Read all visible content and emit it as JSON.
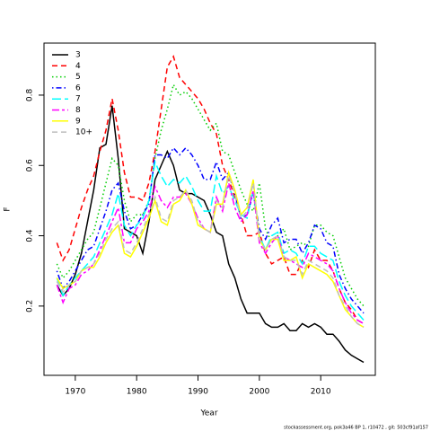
{
  "chart_data": {
    "type": "line",
    "xlabel": "Year",
    "ylabel": "F",
    "caption": "stockassessment.org, pok3a46 BP 1, r10472 , git: 503cf91af157",
    "x": [
      1967,
      1968,
      1969,
      1970,
      1971,
      1972,
      1973,
      1974,
      1975,
      1976,
      1977,
      1978,
      1979,
      1980,
      1981,
      1982,
      1983,
      1984,
      1985,
      1986,
      1987,
      1988,
      1989,
      1990,
      1991,
      1992,
      1993,
      1994,
      1995,
      1996,
      1997,
      1998,
      1999,
      2000,
      2001,
      2002,
      2003,
      2004,
      2005,
      2006,
      2007,
      2008,
      2009,
      2010,
      2011,
      2012,
      2013,
      2014,
      2015,
      2016,
      2017
    ],
    "xlim": [
      1964.9,
      2018.9
    ],
    "xticks": [
      1970,
      1980,
      1990,
      2000,
      2010
    ],
    "ylim": [
      0.003,
      0.948
    ],
    "yticks": [
      0.2,
      0.4,
      0.6,
      0.8
    ],
    "legend": "top-left",
    "series": [
      {
        "name": "3",
        "color": "#000000",
        "dash": "",
        "values": [
          0.26,
          0.23,
          0.25,
          0.29,
          0.35,
          0.44,
          0.53,
          0.65,
          0.66,
          0.77,
          0.62,
          0.42,
          0.41,
          0.4,
          0.35,
          0.44,
          0.56,
          0.6,
          0.64,
          0.6,
          0.53,
          0.52,
          0.52,
          0.51,
          0.5,
          0.46,
          0.41,
          0.4,
          0.32,
          0.28,
          0.22,
          0.18,
          0.18,
          0.18,
          0.15,
          0.14,
          0.14,
          0.15,
          0.13,
          0.13,
          0.15,
          0.14,
          0.15,
          0.14,
          0.12,
          0.12,
          0.1,
          0.075,
          0.06,
          0.05,
          0.04
        ]
      },
      {
        "name": "4",
        "color": "#ff0000",
        "dash": "6 4",
        "values": [
          0.38,
          0.33,
          0.36,
          0.42,
          0.48,
          0.53,
          0.57,
          0.64,
          0.7,
          0.79,
          0.7,
          0.58,
          0.51,
          0.51,
          0.5,
          0.55,
          0.64,
          0.76,
          0.88,
          0.91,
          0.85,
          0.83,
          0.81,
          0.79,
          0.76,
          0.72,
          0.69,
          0.6,
          0.56,
          0.51,
          0.46,
          0.4,
          0.4,
          0.41,
          0.35,
          0.32,
          0.33,
          0.34,
          0.29,
          0.29,
          0.33,
          0.31,
          0.36,
          0.33,
          0.33,
          0.3,
          0.25,
          0.21,
          0.19,
          0.16,
          0.15
        ]
      },
      {
        "name": "5",
        "color": "#00cd00",
        "dash": "1.5 3",
        "values": [
          0.32,
          0.28,
          0.3,
          0.33,
          0.36,
          0.39,
          0.41,
          0.48,
          0.55,
          0.62,
          0.6,
          0.5,
          0.44,
          0.46,
          0.46,
          0.5,
          0.62,
          0.7,
          0.76,
          0.83,
          0.8,
          0.81,
          0.79,
          0.76,
          0.73,
          0.7,
          0.72,
          0.64,
          0.63,
          0.58,
          0.53,
          0.49,
          0.47,
          0.55,
          0.42,
          0.38,
          0.4,
          0.42,
          0.36,
          0.37,
          0.38,
          0.37,
          0.43,
          0.43,
          0.41,
          0.4,
          0.34,
          0.28,
          0.25,
          0.22,
          0.2
        ]
      },
      {
        "name": "6",
        "color": "#0000ff",
        "dash": "1.5 3 6 3",
        "values": [
          0.3,
          0.25,
          0.27,
          0.3,
          0.33,
          0.36,
          0.37,
          0.42,
          0.47,
          0.53,
          0.55,
          0.47,
          0.42,
          0.43,
          0.46,
          0.49,
          0.63,
          0.63,
          0.62,
          0.65,
          0.63,
          0.65,
          0.63,
          0.6,
          0.56,
          0.56,
          0.61,
          0.56,
          0.58,
          0.52,
          0.45,
          0.46,
          0.52,
          0.42,
          0.39,
          0.43,
          0.45,
          0.38,
          0.39,
          0.39,
          0.35,
          0.38,
          0.43,
          0.42,
          0.38,
          0.37,
          0.29,
          0.25,
          0.22,
          0.2,
          0.18
        ]
      },
      {
        "name": "7",
        "color": "#00ffff",
        "dash": "10 4",
        "values": [
          0.28,
          0.23,
          0.26,
          0.28,
          0.3,
          0.32,
          0.34,
          0.38,
          0.42,
          0.46,
          0.52,
          0.43,
          0.4,
          0.43,
          0.45,
          0.5,
          0.61,
          0.57,
          0.54,
          0.56,
          0.55,
          0.57,
          0.54,
          0.5,
          0.47,
          0.47,
          0.57,
          0.52,
          0.54,
          0.5,
          0.46,
          0.45,
          0.53,
          0.4,
          0.36,
          0.4,
          0.41,
          0.35,
          0.36,
          0.35,
          0.32,
          0.37,
          0.37,
          0.35,
          0.34,
          0.33,
          0.27,
          0.23,
          0.2,
          0.18,
          0.16
        ]
      },
      {
        "name": "8",
        "color": "#ff00ff",
        "dash": "8 3 3 3",
        "values": [
          0.26,
          0.21,
          0.25,
          0.26,
          0.29,
          0.3,
          0.32,
          0.36,
          0.4,
          0.44,
          0.48,
          0.38,
          0.38,
          0.42,
          0.44,
          0.47,
          0.54,
          0.5,
          0.48,
          0.51,
          0.51,
          0.52,
          0.49,
          0.45,
          0.42,
          0.41,
          0.51,
          0.47,
          0.55,
          0.48,
          0.44,
          0.46,
          0.53,
          0.38,
          0.35,
          0.38,
          0.4,
          0.34,
          0.33,
          0.32,
          0.31,
          0.35,
          0.34,
          0.33,
          0.32,
          0.3,
          0.25,
          0.21,
          0.18,
          0.16,
          0.15
        ]
      },
      {
        "name": "9",
        "color": "#ffff00",
        "dash": "",
        "values": [
          0.28,
          0.25,
          0.26,
          0.27,
          0.3,
          0.31,
          0.31,
          0.34,
          0.38,
          0.41,
          0.43,
          0.35,
          0.34,
          0.37,
          0.41,
          0.45,
          0.5,
          0.44,
          0.43,
          0.49,
          0.5,
          0.53,
          0.49,
          0.43,
          0.42,
          0.41,
          0.49,
          0.49,
          0.58,
          0.53,
          0.46,
          0.48,
          0.56,
          0.39,
          0.36,
          0.39,
          0.39,
          0.33,
          0.33,
          0.34,
          0.28,
          0.32,
          0.31,
          0.3,
          0.29,
          0.27,
          0.23,
          0.19,
          0.17,
          0.15,
          0.14
        ]
      },
      {
        "name": "10+",
        "color": "#bebebe",
        "dash": "6 4",
        "values": [
          0.27,
          0.24,
          0.26,
          0.27,
          0.3,
          0.31,
          0.32,
          0.35,
          0.39,
          0.42,
          0.44,
          0.36,
          0.35,
          0.38,
          0.42,
          0.46,
          0.51,
          0.45,
          0.44,
          0.5,
          0.51,
          0.53,
          0.5,
          0.44,
          0.42,
          0.41,
          0.5,
          0.48,
          0.57,
          0.52,
          0.45,
          0.47,
          0.55,
          0.39,
          0.36,
          0.39,
          0.4,
          0.34,
          0.33,
          0.33,
          0.29,
          0.33,
          0.32,
          0.31,
          0.3,
          0.28,
          0.23,
          0.2,
          0.17,
          0.15,
          0.14
        ]
      }
    ]
  }
}
